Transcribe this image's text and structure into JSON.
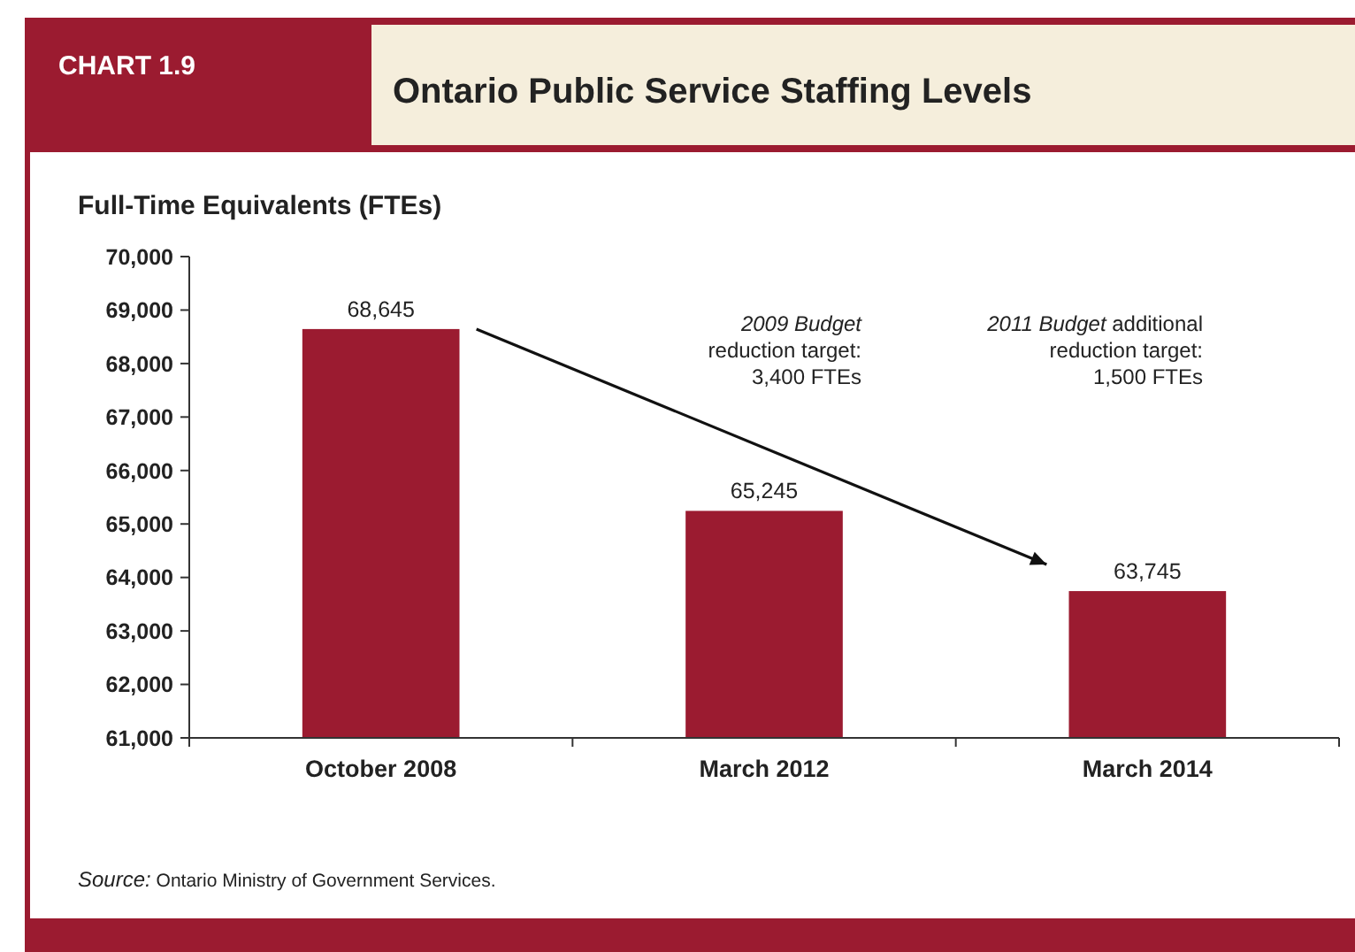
{
  "chart_data": {
    "type": "bar",
    "title": "Ontario Public Service Staffing Levels",
    "ylabel": "Full-Time Equivalents (FTEs)",
    "categories": [
      "October 2008",
      "March 2012",
      "March 2014"
    ],
    "values": [
      68645,
      65245,
      63745
    ],
    "color": "#9b1b30",
    "value_labels": [
      "68,645",
      "65,245",
      "63,745"
    ],
    "ylim": [
      61000,
      70000
    ],
    "yticks": [
      {
        "value": 61000,
        "label": "61,000"
      },
      {
        "value": 62000,
        "label": "62,000"
      },
      {
        "value": 63000,
        "label": "63,000"
      },
      {
        "value": 64000,
        "label": "64,000"
      },
      {
        "value": 65000,
        "label": "65,000"
      },
      {
        "value": 66000,
        "label": "66,000"
      },
      {
        "value": 67000,
        "label": "67,000"
      },
      {
        "value": 68000,
        "label": "68,000"
      },
      {
        "value": 69000,
        "label": "69,000"
      },
      {
        "value": 70000,
        "label": "70,000"
      }
    ],
    "grid": false,
    "annotations": [
      "CHART 1.9",
      "2009 Budget reduction target: 3,400 FTEs",
      "2011 Budget additional reduction target: 1,500 FTEs",
      "Source: Ontario Ministry of Government Services."
    ]
  }
}
